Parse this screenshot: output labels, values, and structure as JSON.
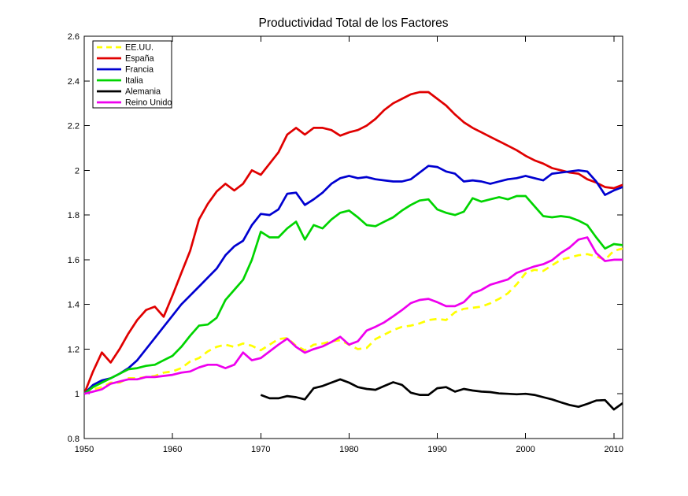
{
  "chart_data": {
    "type": "line",
    "title": "Productividad Total de los Factores",
    "xlabel": "",
    "ylabel": "",
    "xlim": [
      1950,
      2011
    ],
    "ylim": [
      0.8,
      2.6
    ],
    "grid": false,
    "legend_position": "top-left",
    "axis_color": "#000000",
    "background": "#ffffff",
    "xticks": {
      "values": [
        1950,
        1960,
        1970,
        1980,
        1990,
        2000,
        2010
      ],
      "labels": [
        "1950",
        "1960",
        "1970",
        "1980",
        "1990",
        "2000",
        "2010"
      ]
    },
    "yticks": {
      "values": [
        0.8,
        1.0,
        1.2,
        1.4,
        1.6,
        1.8,
        2.0,
        2.2,
        2.4,
        2.6
      ],
      "labels": [
        "0.8",
        "1",
        "1.2",
        "1.4",
        "1.6",
        "1.8",
        "2",
        "2.2",
        "2.4",
        "2.6"
      ]
    },
    "x_years": [
      1950,
      1951,
      1952,
      1953,
      1954,
      1955,
      1956,
      1957,
      1958,
      1959,
      1960,
      1961,
      1962,
      1963,
      1964,
      1965,
      1966,
      1967,
      1968,
      1969,
      1970,
      1971,
      1972,
      1973,
      1974,
      1975,
      1976,
      1977,
      1978,
      1979,
      1980,
      1981,
      1982,
      1983,
      1984,
      1985,
      1986,
      1987,
      1988,
      1989,
      1990,
      1991,
      1992,
      1993,
      1994,
      1995,
      1996,
      1997,
      1998,
      1999,
      2000,
      2001,
      2002,
      2003,
      2004,
      2005,
      2006,
      2007,
      2008,
      2009,
      2010,
      2011
    ],
    "series": [
      {
        "name": "EE.UU.",
        "color": "#ffff00",
        "line_style": "dashed",
        "values": [
          1.0,
          1.02,
          1.03,
          1.05,
          1.05,
          1.07,
          1.07,
          1.075,
          1.08,
          1.095,
          1.1,
          1.115,
          1.145,
          1.16,
          1.19,
          1.21,
          1.22,
          1.21,
          1.225,
          1.215,
          1.195,
          1.22,
          1.245,
          1.25,
          1.215,
          1.195,
          1.22,
          1.225,
          1.235,
          1.24,
          1.22,
          1.2,
          1.205,
          1.245,
          1.265,
          1.285,
          1.3,
          1.305,
          1.315,
          1.33,
          1.335,
          1.33,
          1.365,
          1.38,
          1.385,
          1.39,
          1.405,
          1.425,
          1.45,
          1.49,
          1.54,
          1.555,
          1.55,
          1.575,
          1.6,
          1.61,
          1.62,
          1.625,
          1.615,
          1.6,
          1.64,
          1.65
        ]
      },
      {
        "name": "España",
        "color": "#e00000",
        "line_style": "solid",
        "values": [
          1.0,
          1.1,
          1.185,
          1.14,
          1.2,
          1.27,
          1.33,
          1.375,
          1.39,
          1.345,
          1.44,
          1.54,
          1.64,
          1.78,
          1.85,
          1.905,
          1.94,
          1.91,
          1.94,
          2.0,
          1.98,
          2.03,
          2.08,
          2.16,
          2.19,
          2.16,
          2.19,
          2.19,
          2.18,
          2.155,
          2.17,
          2.18,
          2.2,
          2.23,
          2.27,
          2.3,
          2.32,
          2.34,
          2.35,
          2.35,
          2.32,
          2.29,
          2.25,
          2.215,
          2.19,
          2.17,
          2.15,
          2.13,
          2.11,
          2.09,
          2.065,
          2.045,
          2.03,
          2.01,
          2.0,
          1.99,
          1.985,
          1.96,
          1.945,
          1.925,
          1.92,
          1.935
        ]
      },
      {
        "name": "Francia",
        "color": "#0000d0",
        "line_style": "solid",
        "values": [
          1.0,
          1.04,
          1.06,
          1.07,
          1.09,
          1.115,
          1.15,
          1.2,
          1.25,
          1.3,
          1.35,
          1.4,
          1.44,
          1.48,
          1.52,
          1.56,
          1.62,
          1.66,
          1.685,
          1.755,
          1.805,
          1.8,
          1.825,
          1.895,
          1.9,
          1.845,
          1.87,
          1.9,
          1.94,
          1.965,
          1.975,
          1.965,
          1.97,
          1.96,
          1.955,
          1.95,
          1.95,
          1.96,
          1.99,
          2.02,
          2.015,
          1.995,
          1.985,
          1.95,
          1.955,
          1.95,
          1.94,
          1.95,
          1.96,
          1.965,
          1.975,
          1.965,
          1.955,
          1.985,
          1.99,
          1.995,
          2.0,
          1.995,
          1.95,
          1.89,
          1.91,
          1.925
        ]
      },
      {
        "name": "Italia",
        "color": "#00d400",
        "line_style": "solid",
        "values": [
          1.0,
          1.03,
          1.05,
          1.07,
          1.09,
          1.11,
          1.115,
          1.125,
          1.13,
          1.15,
          1.17,
          1.21,
          1.26,
          1.305,
          1.31,
          1.34,
          1.42,
          1.465,
          1.51,
          1.6,
          1.725,
          1.7,
          1.7,
          1.74,
          1.77,
          1.69,
          1.755,
          1.74,
          1.78,
          1.81,
          1.82,
          1.79,
          1.755,
          1.75,
          1.77,
          1.79,
          1.82,
          1.845,
          1.865,
          1.87,
          1.825,
          1.81,
          1.8,
          1.815,
          1.875,
          1.86,
          1.87,
          1.88,
          1.87,
          1.885,
          1.885,
          1.84,
          1.795,
          1.79,
          1.795,
          1.79,
          1.775,
          1.755,
          1.7,
          1.65,
          1.67,
          1.665
        ]
      },
      {
        "name": "Alemania",
        "color": "#000000",
        "line_style": "solid",
        "values": [
          null,
          null,
          null,
          null,
          null,
          null,
          null,
          null,
          null,
          null,
          null,
          null,
          null,
          null,
          null,
          null,
          null,
          null,
          null,
          null,
          0.995,
          0.98,
          0.98,
          0.99,
          0.985,
          0.975,
          1.025,
          1.035,
          1.05,
          1.065,
          1.05,
          1.03,
          1.022,
          1.018,
          1.035,
          1.052,
          1.04,
          1.005,
          0.995,
          0.995,
          1.025,
          1.03,
          1.01,
          1.022,
          1.015,
          1.01,
          1.008,
          1.002,
          1.0,
          0.998,
          1.0,
          0.995,
          0.985,
          0.975,
          0.962,
          0.95,
          0.942,
          0.955,
          0.97,
          0.972,
          0.93,
          0.958
        ]
      },
      {
        "name": "Reino Unido",
        "color": "#ee00ee",
        "line_style": "solid",
        "values": [
          1.0,
          1.01,
          1.02,
          1.045,
          1.055,
          1.065,
          1.065,
          1.075,
          1.075,
          1.08,
          1.085,
          1.095,
          1.1,
          1.118,
          1.13,
          1.13,
          1.115,
          1.13,
          1.185,
          1.15,
          1.16,
          1.19,
          1.22,
          1.247,
          1.21,
          1.184,
          1.2,
          1.212,
          1.232,
          1.255,
          1.22,
          1.235,
          1.283,
          1.3,
          1.32,
          1.347,
          1.375,
          1.406,
          1.42,
          1.425,
          1.41,
          1.392,
          1.392,
          1.41,
          1.45,
          1.465,
          1.488,
          1.5,
          1.512,
          1.541,
          1.556,
          1.57,
          1.58,
          1.598,
          1.63,
          1.655,
          1.69,
          1.7,
          1.63,
          1.594,
          1.6,
          1.6
        ]
      }
    ]
  }
}
